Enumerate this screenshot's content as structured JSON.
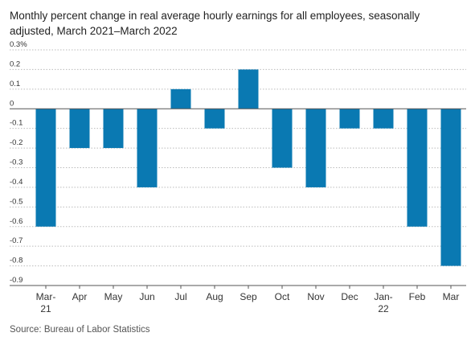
{
  "title": "Monthly percent change in real average hourly earnings for all employees, seasonally adjusted, March 2021–March 2022",
  "source": "Source: Bureau of Labor Statistics",
  "colors": {
    "bar": "#0a79b2",
    "grid": "#bbbbbb",
    "axis": "#555555"
  },
  "chart_data": {
    "type": "bar",
    "categories": [
      "Mar-21",
      "Apr",
      "May",
      "Jun",
      "Jul",
      "Aug",
      "Sep",
      "Oct",
      "Nov",
      "Dec",
      "Jan-22",
      "Feb",
      "Mar"
    ],
    "category_labels": [
      [
        "Mar-",
        "21"
      ],
      [
        "Apr"
      ],
      [
        "May"
      ],
      [
        "Jun"
      ],
      [
        "Jul"
      ],
      [
        "Aug"
      ],
      [
        "Sep"
      ],
      [
        "Oct"
      ],
      [
        "Nov"
      ],
      [
        "Dec"
      ],
      [
        "Jan-",
        "22"
      ],
      [
        "Feb"
      ],
      [
        "Mar"
      ]
    ],
    "values": [
      -0.6,
      -0.2,
      -0.2,
      -0.4,
      0.1,
      -0.1,
      0.2,
      -0.3,
      -0.4,
      -0.1,
      -0.1,
      -0.6,
      -0.8
    ],
    "ylim": [
      -0.9,
      0.3
    ],
    "yticks": [
      0.3,
      0.2,
      0.1,
      0,
      -0.1,
      -0.2,
      -0.3,
      -0.4,
      -0.5,
      -0.6,
      -0.7,
      -0.8,
      -0.9
    ],
    "ytick_labels": [
      "0.3%",
      "0.2",
      "0.1",
      "0",
      "-0.1",
      "-0.2",
      "-0.3",
      "-0.4",
      "-0.5",
      "-0.6",
      "-0.7",
      "-0.8",
      "-0.9"
    ],
    "xlabel": "",
    "ylabel": "",
    "grid": "horizontal dotted",
    "legend": "none"
  }
}
